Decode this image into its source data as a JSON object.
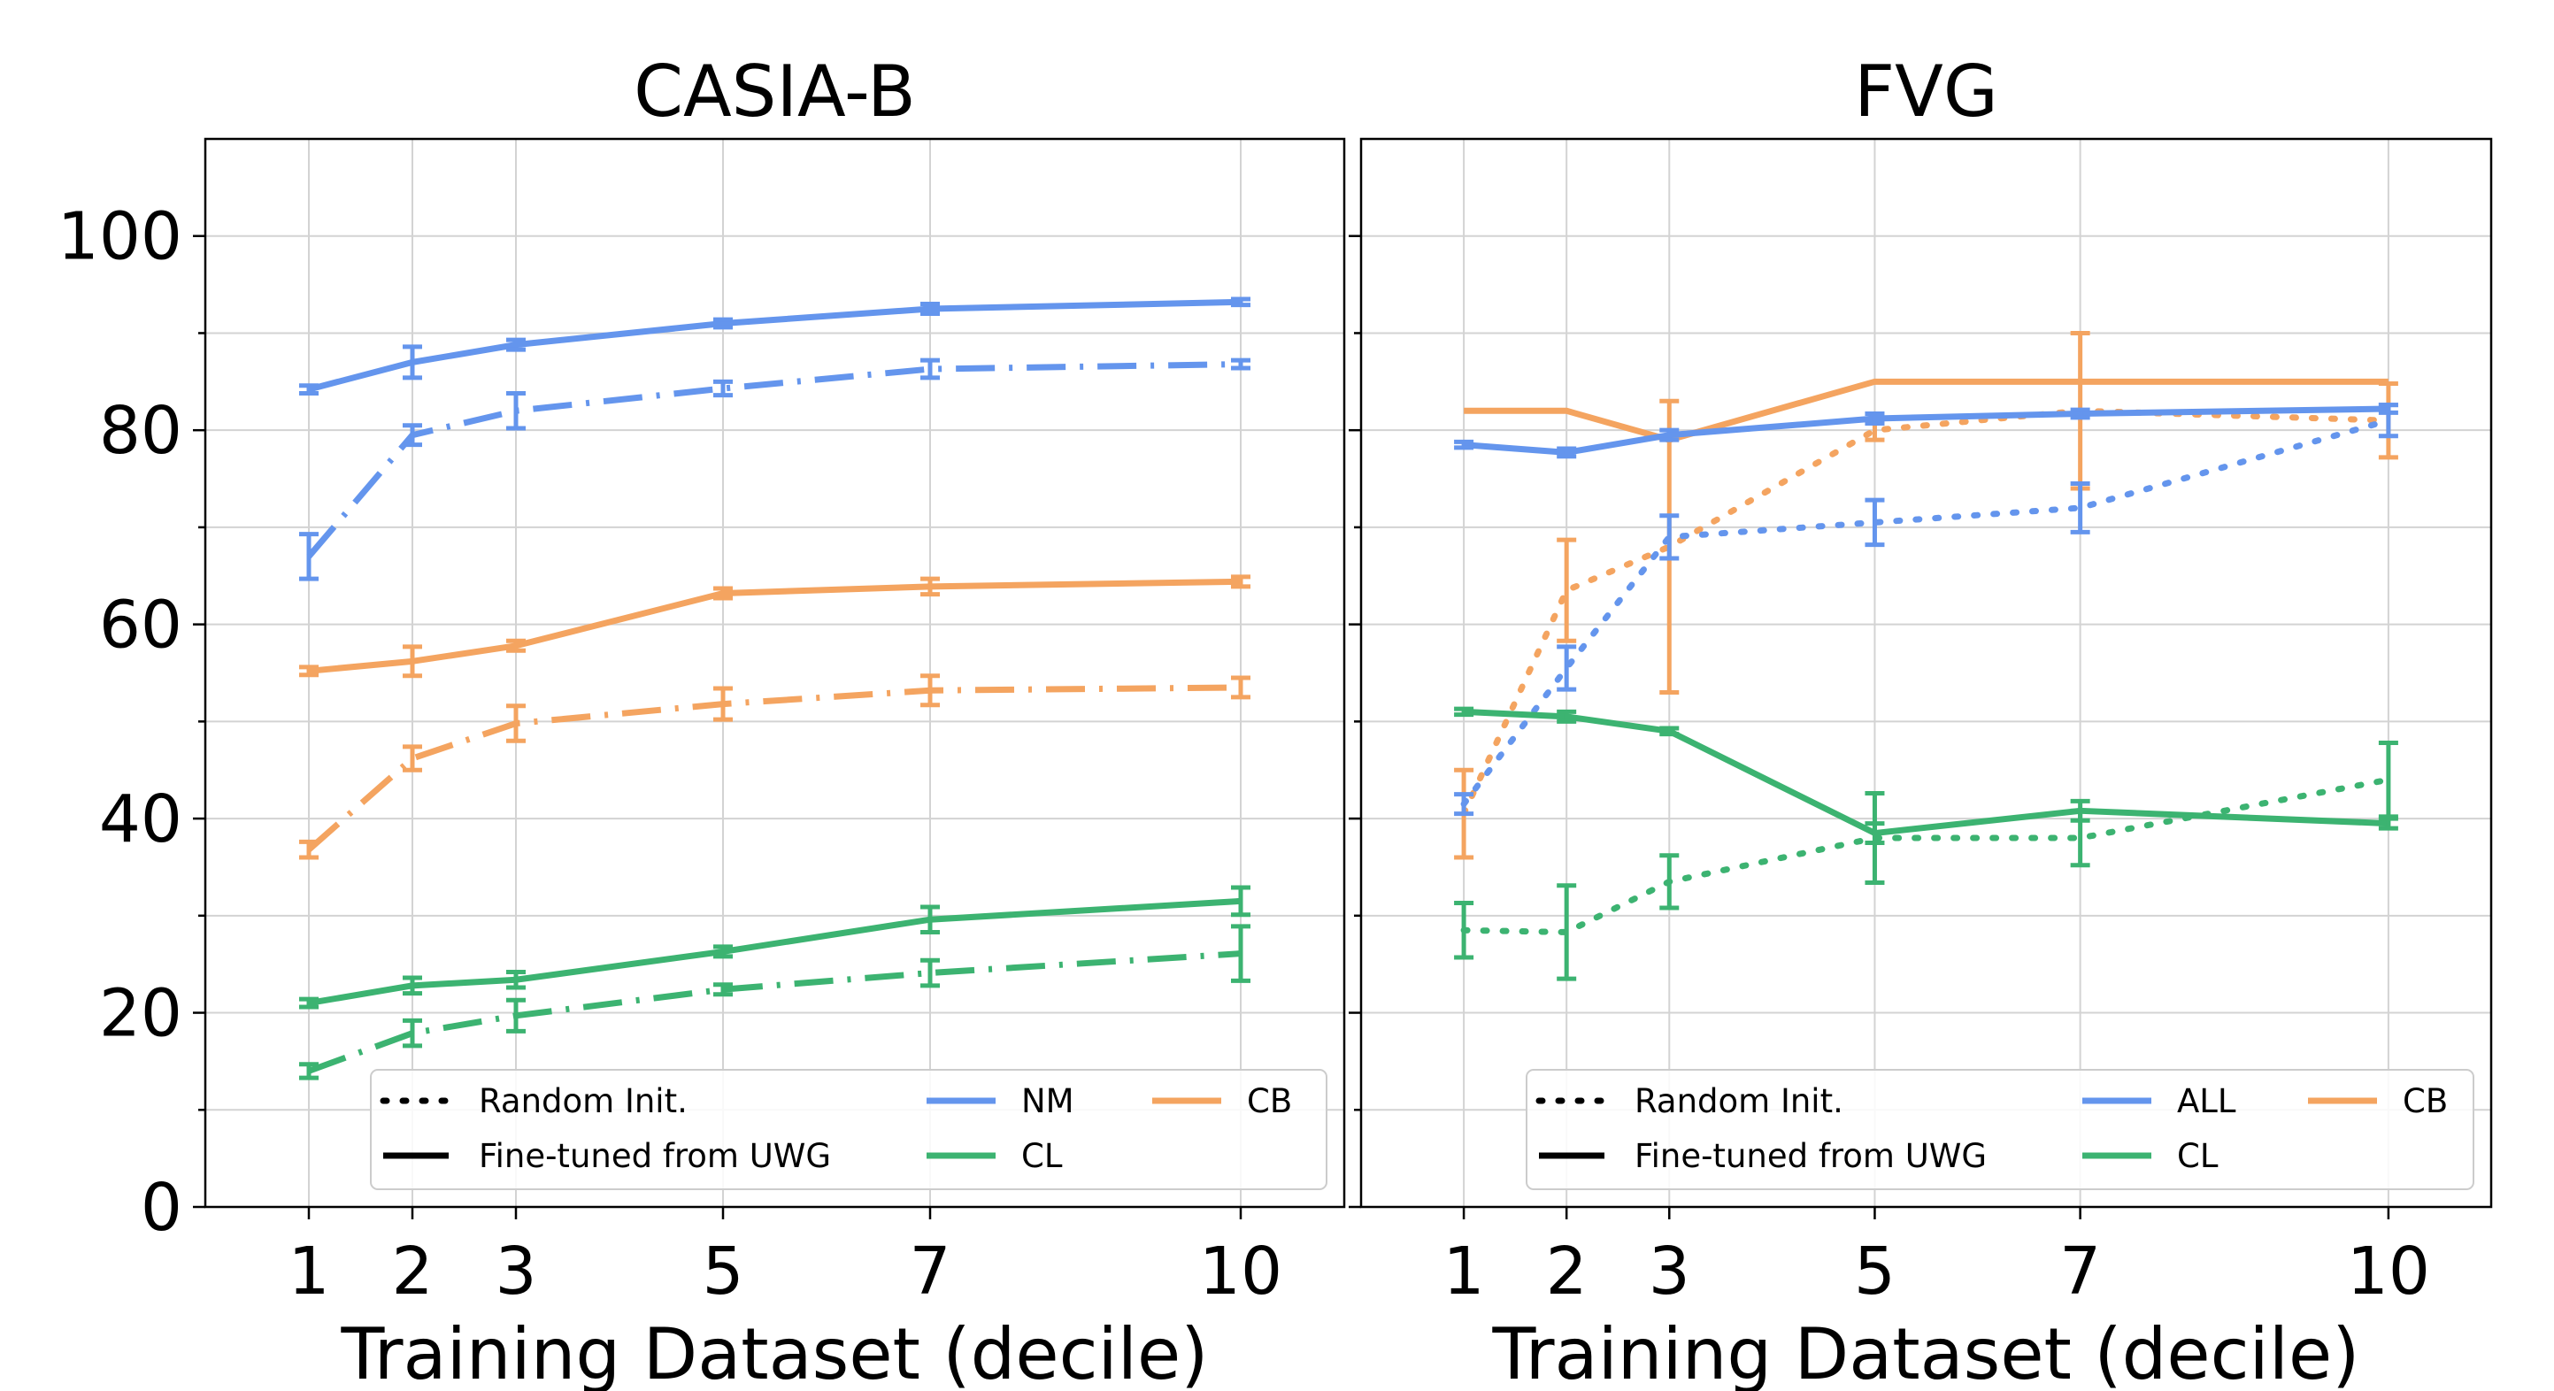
{
  "chart_data": [
    {
      "type": "line",
      "title": "CASIA-B",
      "xlabel": "Training Dataset (decile)",
      "ylabel": "",
      "x": [
        1,
        2,
        3,
        5,
        7,
        10
      ],
      "xlim": [
        0,
        11
      ],
      "ylim": [
        0,
        110
      ],
      "yticks": [
        0,
        20,
        40,
        60,
        80,
        100
      ],
      "grid": true,
      "legend": {
        "placement": "lower-right",
        "style_entries": [
          {
            "label": "Random Init.",
            "dash": "dotted"
          },
          {
            "label": "Fine-tuned from UWG",
            "dash": "solid"
          }
        ],
        "color_entries": [
          {
            "label": "NM",
            "color": "#6495ED"
          },
          {
            "label": "CB",
            "color": "#F4A460"
          },
          {
            "label": "CL",
            "color": "#3CB371"
          }
        ]
      },
      "series": [
        {
          "name": "NM fine-tuned",
          "color": "#6495ED",
          "dash": "solid",
          "values": [
            84.2,
            87.0,
            88.8,
            91.0,
            92.5,
            93.2
          ],
          "err": [
            0.4,
            1.6,
            0.5,
            0.4,
            0.5,
            0.3
          ]
        },
        {
          "name": "NM random",
          "color": "#6495ED",
          "dash": "dashdot",
          "values": [
            67.0,
            79.5,
            82.0,
            84.3,
            86.3,
            86.8
          ],
          "err": [
            2.3,
            1.0,
            1.8,
            0.7,
            0.9,
            0.4
          ]
        },
        {
          "name": "CB fine-tuned",
          "color": "#F4A460",
          "dash": "solid",
          "values": [
            55.2,
            56.2,
            57.8,
            63.2,
            63.9,
            64.4
          ],
          "err": [
            0.4,
            1.5,
            0.5,
            0.5,
            0.8,
            0.5
          ]
        },
        {
          "name": "CB random",
          "color": "#F4A460",
          "dash": "dashdot",
          "values": [
            36.8,
            46.2,
            49.8,
            51.8,
            53.2,
            53.5
          ],
          "err": [
            0.8,
            1.2,
            1.8,
            1.6,
            1.5,
            1.0
          ]
        },
        {
          "name": "CL fine-tuned",
          "color": "#3CB371",
          "dash": "solid",
          "values": [
            21.0,
            22.8,
            23.4,
            26.3,
            29.6,
            31.5
          ],
          "err": [
            0.4,
            0.8,
            0.8,
            0.5,
            1.3,
            1.4
          ]
        },
        {
          "name": "CL random",
          "color": "#3CB371",
          "dash": "dashdot",
          "values": [
            14.0,
            17.9,
            19.7,
            22.4,
            24.1,
            26.1
          ],
          "err": [
            0.7,
            1.3,
            1.6,
            0.5,
            1.3,
            2.8
          ]
        }
      ]
    },
    {
      "type": "line",
      "title": "FVG",
      "xlabel": "Training Dataset (decile)",
      "ylabel": "",
      "x": [
        1,
        2,
        3,
        5,
        7,
        10
      ],
      "xlim": [
        0,
        11
      ],
      "ylim": [
        0,
        110
      ],
      "yticks": [
        0,
        20,
        40,
        60,
        80,
        100
      ],
      "grid": true,
      "legend": {
        "placement": "lower-right",
        "style_entries": [
          {
            "label": "Random Init.",
            "dash": "dotted"
          },
          {
            "label": "Fine-tuned from UWG",
            "dash": "solid"
          }
        ],
        "color_entries": [
          {
            "label": "ALL",
            "color": "#6495ED"
          },
          {
            "label": "CB",
            "color": "#F4A460"
          },
          {
            "label": "CL",
            "color": "#3CB371"
          }
        ]
      },
      "series": [
        {
          "name": "CB fine-tuned",
          "color": "#F4A460",
          "dash": "solid",
          "values": [
            82.0,
            82.0,
            79.0,
            85.0,
            85.0,
            85.0
          ],
          "err": [
            0,
            0,
            0,
            0,
            0,
            0
          ]
        },
        {
          "name": "CB random",
          "color": "#F4A460",
          "dash": "dotted",
          "values": [
            40.5,
            63.5,
            68.0,
            80.0,
            82.0,
            81.0
          ],
          "err": [
            4.5,
            5.2,
            15.0,
            1.0,
            8.0,
            3.8
          ]
        },
        {
          "name": "ALL fine-tuned",
          "color": "#6495ED",
          "dash": "solid",
          "values": [
            78.5,
            77.7,
            79.5,
            81.2,
            81.7,
            82.2
          ],
          "err": [
            0.3,
            0.4,
            0.5,
            0.5,
            0.4,
            0.4
          ]
        },
        {
          "name": "ALL random",
          "color": "#6495ED",
          "dash": "dotted",
          "values": [
            41.5,
            55.5,
            69.0,
            70.5,
            72.0,
            81.0
          ],
          "err": [
            1.0,
            2.2,
            2.2,
            2.3,
            2.5,
            1.6
          ]
        },
        {
          "name": "CL fine-tuned",
          "color": "#3CB371",
          "dash": "solid",
          "values": [
            51.0,
            50.5,
            49.0,
            38.5,
            40.8,
            39.5
          ],
          "err": [
            0.3,
            0.5,
            0.3,
            1.0,
            1.0,
            0.5
          ]
        },
        {
          "name": "CL random",
          "color": "#3CB371",
          "dash": "dotted",
          "values": [
            28.5,
            28.3,
            33.5,
            38.0,
            38.0,
            44.0
          ],
          "err": [
            2.8,
            4.8,
            2.7,
            4.6,
            2.8,
            3.8
          ]
        }
      ]
    }
  ]
}
